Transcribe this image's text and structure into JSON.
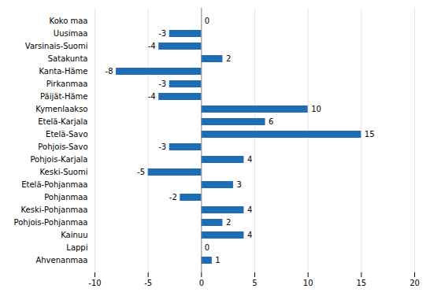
{
  "chart_data": {
    "type": "bar",
    "orientation": "horizontal",
    "categories": [
      "Ahvenanmaa",
      "Lappi",
      "Kainuu",
      "Pohjois-Pohjanmaa",
      "Keski-Pohjanmaa",
      "Pohjanmaa",
      "Etelä-Pohjanmaa",
      "Keski-Suomi",
      "Pohjois-Karjala",
      "Pohjois-Savo",
      "Etelä-Savo",
      "Etelä-Karjala",
      "Kymenlaakso",
      "Päijät-Häme",
      "Pirkanmaa",
      "Kanta-Häme",
      "Satakunta",
      "Varsinais-Suomi",
      "Uusimaa",
      "Koko maa"
    ],
    "values": [
      1,
      0,
      4,
      2,
      4,
      -2,
      3,
      -5,
      4,
      -3,
      15,
      6,
      10,
      -4,
      -3,
      -8,
      2,
      -4,
      -3,
      0
    ],
    "color": "#1f6eb5",
    "xlim": [
      -10,
      20
    ],
    "xticks": [
      -10,
      -5,
      0,
      5,
      10,
      15,
      20
    ],
    "grid": true,
    "data_labels": true
  }
}
